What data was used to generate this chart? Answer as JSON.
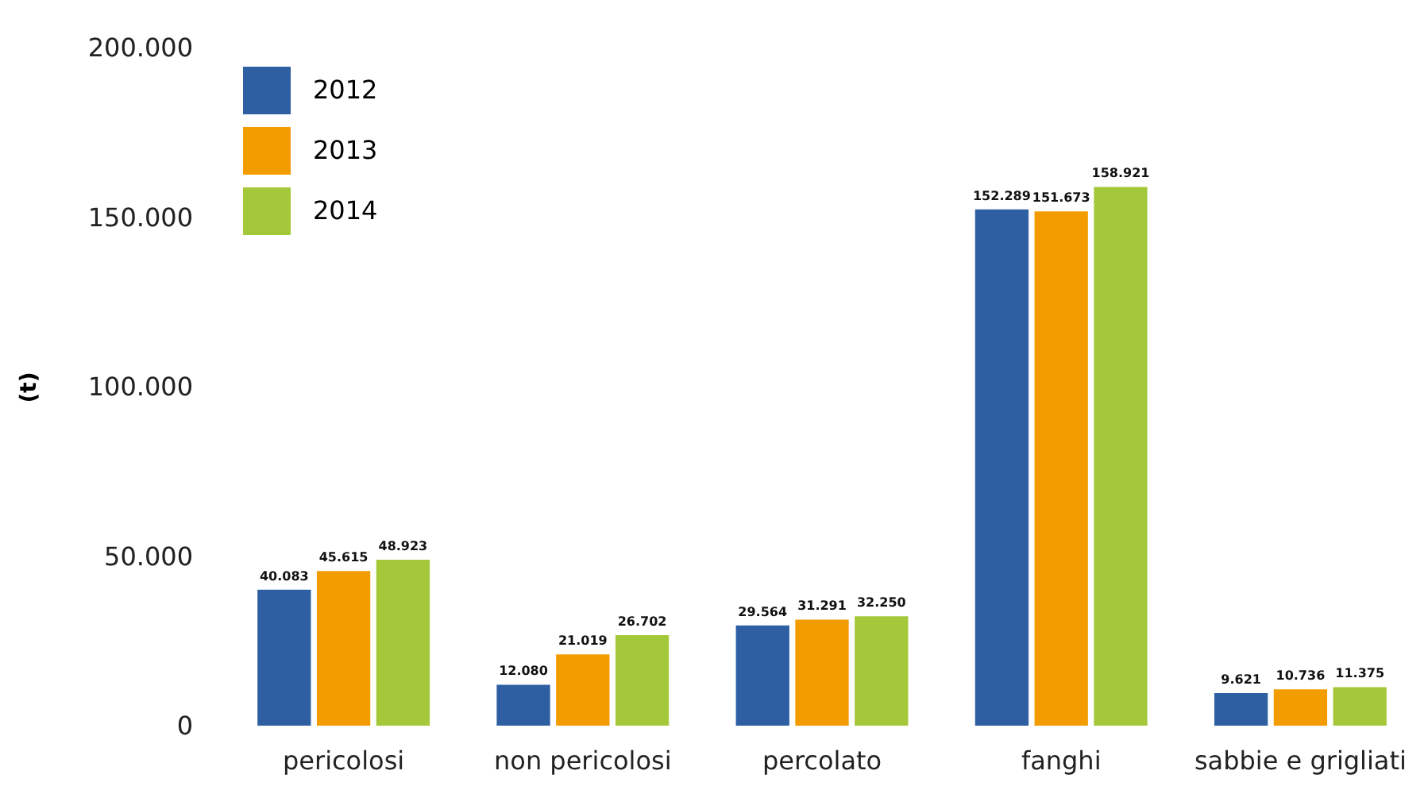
{
  "chart_data": {
    "type": "bar",
    "ylabel": "(t)",
    "categories": [
      "pericolosi",
      "non pericolosi",
      "percolato",
      "fanghi",
      "sabbie e grigliati"
    ],
    "series": [
      {
        "name": "2012",
        "color": "#2e5fa3",
        "values": [
          40083,
          12080,
          29564,
          152289,
          9621
        ],
        "value_labels": [
          "40.083",
          "12.080",
          "29.564",
          "152.289",
          "9.621"
        ]
      },
      {
        "name": "2013",
        "color": "#f39c00",
        "values": [
          45615,
          21019,
          31291,
          151673,
          10736
        ],
        "value_labels": [
          "45.615",
          "21.019",
          "31.291",
          "151.673",
          "10.736"
        ]
      },
      {
        "name": "2014",
        "color": "#a5c83a",
        "values": [
          48923,
          26702,
          32250,
          158921,
          11375
        ],
        "value_labels": [
          "48.923",
          "26.702",
          "32.250",
          "158.921",
          "11.375"
        ]
      }
    ],
    "ylim": [
      0,
      200000
    ],
    "yticks": [
      0,
      {
        "value": 50000,
        "label": "50.000"
      },
      {
        "value": 100000,
        "label": "100.000"
      },
      {
        "value": 150000,
        "label": "150.000"
      },
      {
        "value": 200000,
        "label": "200.000"
      }
    ],
    "grid": false,
    "legend": "top left"
  }
}
